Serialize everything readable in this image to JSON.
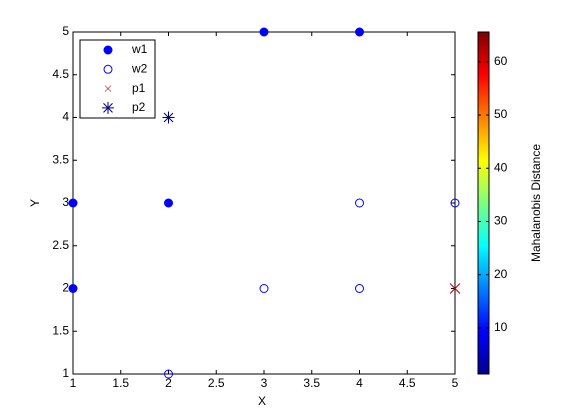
{
  "chart_data": {
    "type": "scatter",
    "xlabel": "X",
    "ylabel": "Y",
    "xlim": [
      1,
      5
    ],
    "ylim": [
      1,
      5
    ],
    "xticks": [
      1,
      1.5,
      2,
      2.5,
      3,
      3.5,
      4,
      4.5,
      5
    ],
    "yticks": [
      1,
      1.5,
      2,
      2.5,
      3,
      3.5,
      4,
      4.5,
      5
    ],
    "legend": "upper left",
    "series": [
      {
        "name": "w1",
        "color": "#0000ff",
        "marker": "filled-circle",
        "x": [
          1,
          1,
          2,
          3,
          4
        ],
        "values": [
          3,
          2,
          3,
          5,
          5
        ]
      },
      {
        "name": "w2",
        "color": "#0000ff",
        "marker": "open-circle",
        "x": [
          2,
          3,
          4,
          4,
          5
        ],
        "values": [
          1,
          2,
          2,
          3,
          3
        ]
      },
      {
        "name": "p1",
        "color": "#b00000",
        "marker": "cross",
        "x": [
          5
        ],
        "values": [
          2
        ]
      },
      {
        "name": "p2",
        "color": "#000080",
        "marker": "asterisk",
        "x": [
          2
        ],
        "values": [
          4
        ]
      }
    ],
    "colorbar": {
      "label": "Mahalanobis Distance",
      "colormap": "jet",
      "lim": [
        1.35,
        65.6
      ],
      "ticks": [
        10,
        20,
        30,
        40,
        50,
        60
      ]
    }
  }
}
